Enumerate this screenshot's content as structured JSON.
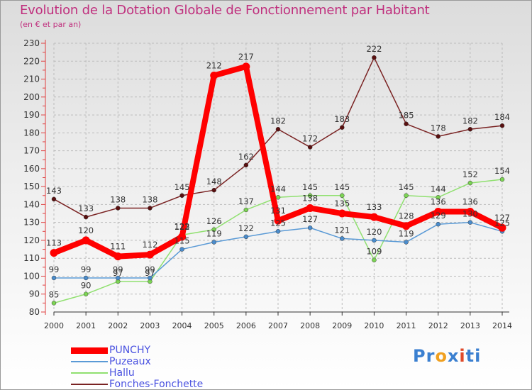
{
  "chart_data": {
    "type": "line",
    "title": "Evolution de la Dotation Globale de Fonctionnement par Habitant",
    "subtitle": "(en € et par an)",
    "x": [
      "2000",
      "2001",
      "2002",
      "2003",
      "2004",
      "2005",
      "2006",
      "2007",
      "2008",
      "2009",
      "2010",
      "2011",
      "2012",
      "2013",
      "2014"
    ],
    "ylim": [
      80,
      230
    ],
    "yticks": [
      80,
      90,
      100,
      110,
      120,
      130,
      140,
      150,
      160,
      170,
      180,
      190,
      200,
      210,
      220,
      230
    ],
    "grid": true,
    "legend_position": "bottom-left",
    "series": [
      {
        "name": "Fonches-Fonchette",
        "color": "#7a2323",
        "point_color": "#5a1010",
        "values": [
          143,
          133,
          138,
          138,
          145,
          148,
          162,
          182,
          172,
          183,
          222,
          185,
          178,
          182,
          184
        ]
      },
      {
        "name": "Hallu",
        "color": "#90e070",
        "point_color": "#7cd454",
        "values": [
          85,
          90,
          97,
          97,
          123,
          126,
          137,
          144,
          145,
          145,
          109,
          145,
          144,
          152,
          154
        ]
      },
      {
        "name": "Puzeaux",
        "color": "#5a9ad6",
        "point_color": "#4a8ccc",
        "values": [
          99,
          99,
          99,
          99,
          115,
          119,
          122,
          125,
          127,
          121,
          120,
          119,
          129,
          130,
          125
        ]
      },
      {
        "name": "PUNCHY",
        "color": "#ff0000",
        "point_color": "#ff0000",
        "values": [
          113,
          120,
          111,
          112,
          122,
          212,
          217,
          131,
          138,
          135,
          133,
          128,
          136,
          136,
          127
        ]
      }
    ],
    "legend_order": [
      "PUNCHY",
      "Puzeaux",
      "Hallu",
      "Fonches-Fonchette"
    ]
  },
  "logo": {
    "letters": [
      "P",
      "r",
      "o",
      "x",
      "i",
      "t",
      "i"
    ],
    "colors": [
      "#3a7fd0",
      "#3a7fd0",
      "#f0a020",
      "#3a7fd0",
      "#e04a2a",
      "#3a7fd0",
      "#3a7fd0"
    ]
  }
}
